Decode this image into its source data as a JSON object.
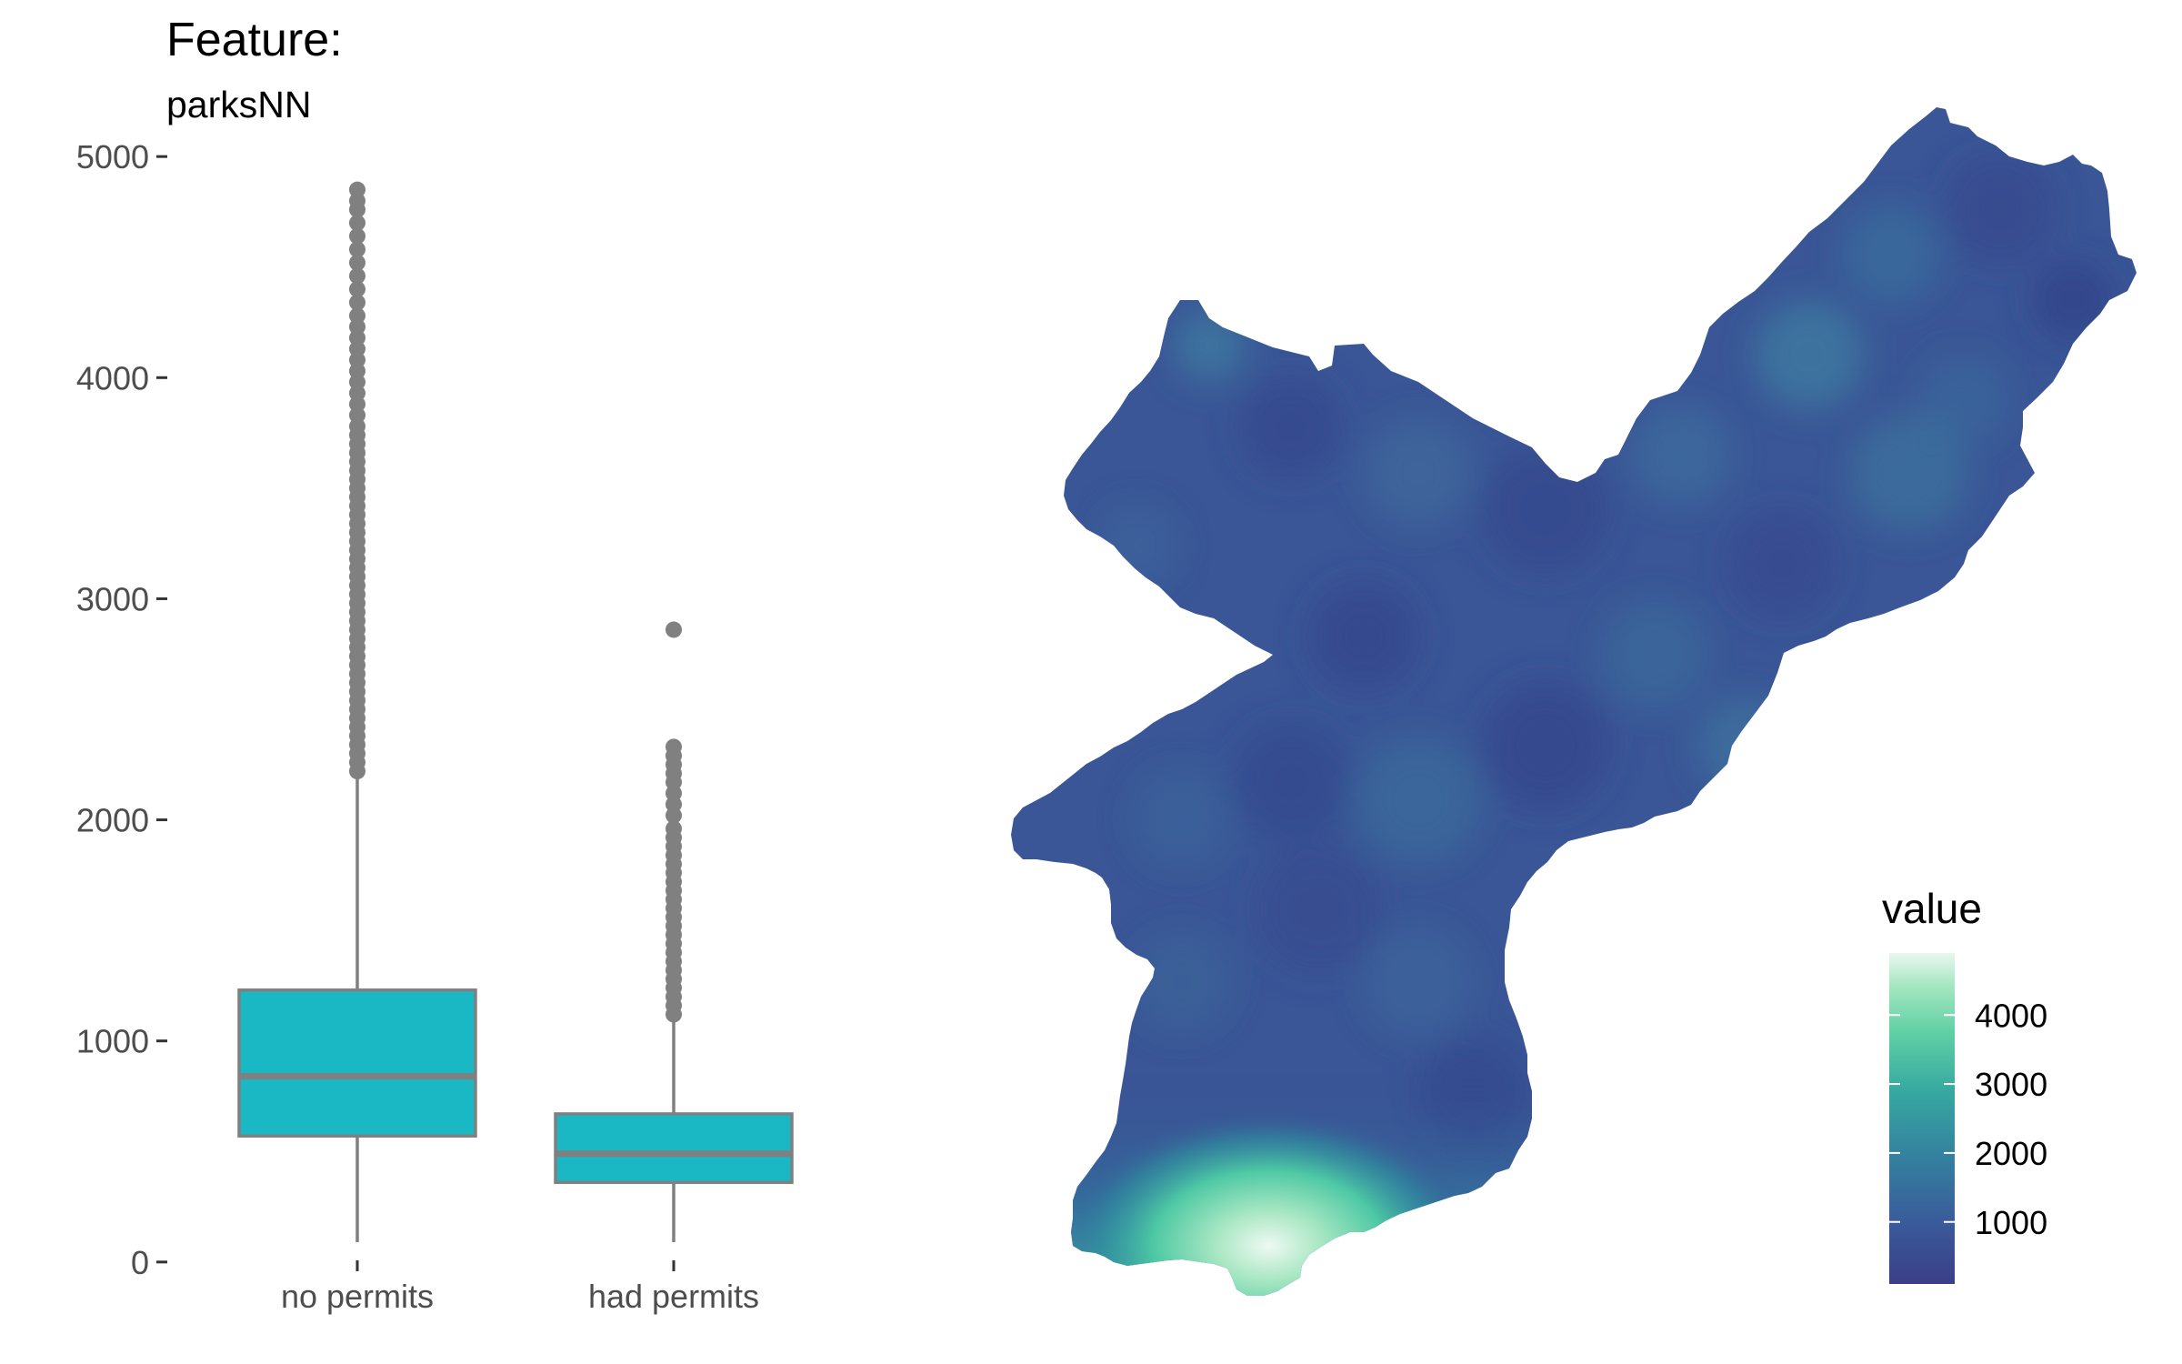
{
  "chart_data": [
    {
      "type": "box",
      "title": "Feature:",
      "subtitle": "parksNN",
      "xlabel": "",
      "ylabel": "",
      "ylim": [
        -50,
        5050
      ],
      "yticks": [
        0,
        1000,
        2000,
        3000,
        4000,
        5000
      ],
      "categories": [
        "no permits",
        "had permits"
      ],
      "boxes": [
        {
          "category": "no permits",
          "whisker_low": 90,
          "q1": 570,
          "median": 840,
          "q3": 1230,
          "whisker_high": 2200,
          "outliers": [
            2220,
            2260,
            2300,
            2340,
            2380,
            2420,
            2460,
            2500,
            2540,
            2580,
            2620,
            2660,
            2700,
            2740,
            2780,
            2820,
            2860,
            2900,
            2940,
            2980,
            3020,
            3060,
            3100,
            3140,
            3180,
            3220,
            3260,
            3300,
            3340,
            3380,
            3420,
            3460,
            3500,
            3540,
            3580,
            3620,
            3660,
            3700,
            3740,
            3780,
            3830,
            3880,
            3930,
            3980,
            4030,
            4080,
            4130,
            4180,
            4230,
            4280,
            4340,
            4400,
            4460,
            4520,
            4580,
            4640,
            4700,
            4760,
            4800,
            4850
          ]
        },
        {
          "category": "had permits",
          "whisker_low": 90,
          "q1": 360,
          "median": 490,
          "q3": 670,
          "whisker_high": 1100,
          "outliers": [
            1120,
            1160,
            1200,
            1240,
            1280,
            1320,
            1360,
            1400,
            1440,
            1480,
            1520,
            1560,
            1600,
            1640,
            1680,
            1720,
            1760,
            1800,
            1840,
            1880,
            1920,
            1960,
            2020,
            2070,
            2120,
            2170,
            2210,
            2250,
            2290,
            2330,
            2860
          ]
        }
      ],
      "fill_color": "#1ab7c4",
      "line_color": "#808080"
    },
    {
      "type": "heatmap",
      "legend_title": "value",
      "legend_ticks": [
        1000,
        2000,
        3000,
        4000
      ],
      "legend_range": [
        100,
        4900
      ],
      "legend_position": "bottom-right",
      "colormap": [
        "#3b3e87",
        "#3a5a9a",
        "#34809f",
        "#36a8a0",
        "#5fd0a4",
        "#a5e6c1",
        "#e9f7ef"
      ]
    }
  ]
}
